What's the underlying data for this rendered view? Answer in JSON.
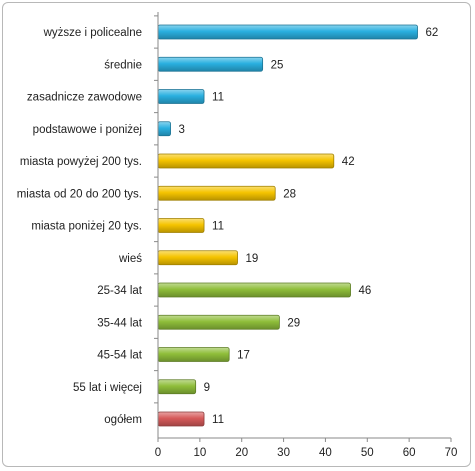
{
  "chart_data": {
    "type": "bar",
    "orientation": "horizontal",
    "categories": [
      "wyższe i policealne",
      "średnie",
      "zasadnicze zawodowe",
      "podstawowe i poniżej",
      "miasta powyżej 200 tys.",
      "miasta od 20 do 200 tys.",
      "miasta poniżej 20 tys.",
      "wieś",
      "25-34 lat",
      "35-44 lat",
      "45-54 lat",
      "55 lat i więcej",
      "ogółem"
    ],
    "values": [
      62,
      25,
      11,
      3,
      42,
      28,
      11,
      19,
      46,
      29,
      17,
      9,
      11
    ],
    "value_labels": [
      "62",
      "25",
      "11",
      "3",
      "42",
      "28",
      "11",
      "19",
      "46",
      "29",
      "17",
      "9",
      "11"
    ],
    "groups": [
      "education",
      "education",
      "education",
      "education",
      "residence",
      "residence",
      "residence",
      "residence",
      "age",
      "age",
      "age",
      "age",
      "total"
    ],
    "group_colors": {
      "education": "#2ab0e0",
      "residence": "#f5c400",
      "age": "#8fbe3a",
      "total": "#d65a5a"
    },
    "xlim": [
      0,
      70
    ],
    "x_ticks": [
      0,
      10,
      20,
      30,
      40,
      50,
      60,
      70
    ],
    "x_tick_labels": [
      "0",
      "10",
      "20",
      "30",
      "40",
      "50",
      "60",
      "70"
    ],
    "title": "",
    "xlabel": "",
    "ylabel": "",
    "grid": false,
    "legend": "none"
  }
}
